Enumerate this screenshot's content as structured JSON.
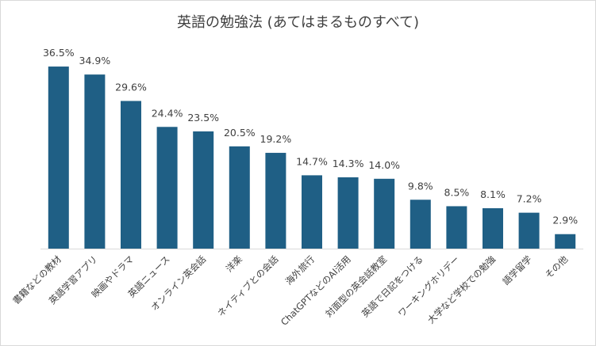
{
  "chart_data": {
    "type": "bar",
    "title": "英語の勉強法 (あてはまるものすべて)",
    "categories": [
      "書籍などの教材",
      "英語学習アプリ",
      "映画やドラマ",
      "英語ニュース",
      "オンライン英会話",
      "洋楽",
      "ネイティブとの会話",
      "海外旅行",
      "ChatGPTなどのAI活用",
      "対面型の英会話教室",
      "英語で日記をつける",
      "ワーキングホリデー",
      "大学など学校での勉強",
      "語学留学",
      "その他"
    ],
    "values": [
      36.5,
      34.9,
      29.6,
      24.4,
      23.5,
      20.5,
      19.2,
      14.7,
      14.3,
      14.0,
      9.8,
      8.5,
      8.1,
      7.2,
      2.9
    ],
    "value_labels": [
      "36.5%",
      "34.9%",
      "29.6%",
      "24.4%",
      "23.5%",
      "20.5%",
      "19.2%",
      "14.7%",
      "14.3%",
      "14.0%",
      "9.8%",
      "8.5%",
      "8.1%",
      "7.2%",
      "2.9%"
    ],
    "bar_color": "#1f5f85",
    "ylim": [
      0,
      40
    ],
    "grid": false,
    "legend": "none",
    "xlabel": "",
    "ylabel": ""
  }
}
